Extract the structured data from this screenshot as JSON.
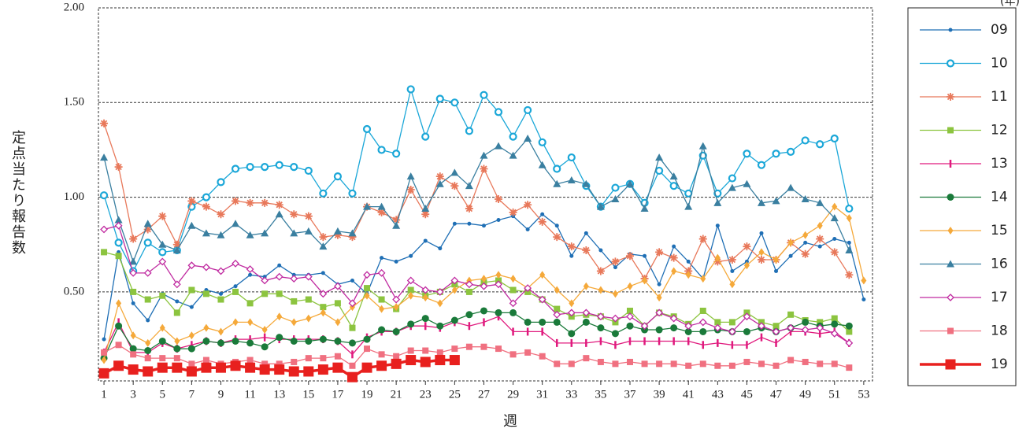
{
  "chart_data": {
    "type": "line",
    "x_label": "週",
    "y_label": "定点当たり報告数",
    "legend_title": "(年)",
    "x": [
      1,
      2,
      3,
      4,
      5,
      6,
      7,
      8,
      9,
      10,
      11,
      12,
      13,
      14,
      15,
      16,
      17,
      18,
      19,
      20,
      21,
      22,
      23,
      24,
      25,
      26,
      27,
      28,
      29,
      30,
      31,
      32,
      33,
      34,
      35,
      36,
      37,
      38,
      39,
      40,
      41,
      42,
      43,
      44,
      45,
      46,
      47,
      48,
      49,
      50,
      51,
      52,
      53
    ],
    "xlim": [
      0.62,
      53.6
    ],
    "xticks": [
      1,
      3,
      5,
      7,
      9,
      11,
      13,
      15,
      17,
      19,
      21,
      23,
      25,
      27,
      29,
      31,
      33,
      35,
      37,
      39,
      41,
      43,
      45,
      47,
      49,
      51,
      53
    ],
    "ylim": [
      0.03,
      2.0
    ],
    "yticks": [
      {
        "value": 0.5,
        "label": "0.50"
      },
      {
        "value": 1,
        "label": "1.00"
      },
      {
        "value": 1.5,
        "label": "1.50"
      },
      {
        "value": 2,
        "label": "2.00"
      }
    ],
    "grid": true,
    "legend": "right",
    "series": [
      {
        "name": "09",
        "color": "#1f6fb5",
        "marker": "dot",
        "values": [
          0.25,
          0.71,
          0.44,
          0.35,
          0.49,
          0.45,
          0.42,
          0.51,
          0.49,
          0.53,
          0.59,
          0.58,
          0.64,
          0.59,
          0.59,
          0.6,
          0.54,
          0.56,
          0.49,
          0.68,
          0.66,
          0.69,
          0.77,
          0.73,
          0.86,
          0.86,
          0.85,
          0.88,
          0.9,
          0.83,
          0.91,
          0.85,
          0.69,
          0.81,
          0.72,
          0.63,
          0.7,
          0.69,
          0.54,
          0.74,
          0.66,
          0.57,
          0.85,
          0.61,
          0.66,
          0.81,
          0.61,
          0.69,
          0.76,
          0.74,
          0.78,
          0.76,
          0.46
        ]
      },
      {
        "name": "10",
        "color": "#1ba7d8",
        "marker": "ring",
        "values": [
          1.01,
          0.76,
          0.61,
          0.76,
          0.71,
          0.72,
          0.95,
          1.0,
          1.08,
          1.15,
          1.16,
          1.16,
          1.17,
          1.16,
          1.14,
          1.02,
          1.11,
          1.02,
          1.36,
          1.25,
          1.23,
          1.57,
          1.32,
          1.52,
          1.5,
          1.35,
          1.54,
          1.45,
          1.32,
          1.46,
          1.29,
          1.15,
          1.21,
          1.06,
          0.95,
          1.05,
          1.07,
          0.97,
          1.14,
          1.06,
          1.02,
          1.22,
          1.02,
          1.1,
          1.23,
          1.17,
          1.23,
          1.24,
          1.3,
          1.28,
          1.31,
          0.94,
          null
        ]
      },
      {
        "name": "11",
        "color": "#e8785a",
        "marker": "star",
        "values": [
          1.39,
          1.16,
          0.78,
          0.83,
          0.9,
          0.75,
          0.98,
          0.95,
          0.91,
          0.98,
          0.97,
          0.97,
          0.96,
          0.91,
          0.9,
          0.79,
          0.8,
          0.79,
          0.95,
          0.92,
          0.88,
          1.04,
          0.91,
          1.11,
          1.06,
          0.94,
          1.15,
          0.99,
          0.92,
          0.96,
          0.87,
          0.79,
          0.74,
          0.72,
          0.61,
          0.66,
          0.69,
          0.57,
          0.71,
          0.68,
          0.61,
          0.78,
          0.66,
          0.67,
          0.74,
          0.67,
          0.67,
          0.76,
          0.7,
          0.78,
          0.71,
          0.59,
          null
        ]
      },
      {
        "name": "12",
        "color": "#8cc43f",
        "marker": "square",
        "values": [
          0.71,
          0.69,
          0.5,
          0.46,
          0.48,
          0.39,
          0.51,
          0.49,
          0.46,
          0.5,
          0.44,
          0.49,
          0.49,
          0.45,
          0.46,
          0.42,
          0.44,
          0.31,
          0.52,
          0.46,
          0.41,
          0.51,
          0.48,
          0.5,
          0.54,
          0.5,
          0.55,
          0.56,
          0.51,
          0.5,
          0.46,
          0.41,
          0.37,
          0.38,
          0.37,
          0.34,
          0.4,
          0.32,
          0.39,
          0.37,
          0.33,
          0.4,
          0.34,
          0.34,
          0.39,
          0.34,
          0.32,
          0.38,
          0.35,
          0.34,
          0.36,
          0.29,
          null
        ]
      },
      {
        "name": "13",
        "color": "#e0197d",
        "marker": "tick",
        "values": [
          0.18,
          0.34,
          0.18,
          0.18,
          0.23,
          0.2,
          0.22,
          0.24,
          0.23,
          0.25,
          0.25,
          0.26,
          0.25,
          0.25,
          0.25,
          0.25,
          0.24,
          0.17,
          0.26,
          0.29,
          0.29,
          0.32,
          0.32,
          0.31,
          0.34,
          0.32,
          0.34,
          0.37,
          0.29,
          0.29,
          0.29,
          0.23,
          0.23,
          0.23,
          0.24,
          0.22,
          0.24,
          0.24,
          0.24,
          0.24,
          0.24,
          0.22,
          0.23,
          0.22,
          0.22,
          0.26,
          0.23,
          0.29,
          0.29,
          0.28,
          0.29,
          0.23,
          null
        ]
      },
      {
        "name": "14",
        "color": "#1a7a3a",
        "marker": "bigdot",
        "values": [
          0.15,
          0.32,
          0.2,
          0.19,
          0.24,
          0.2,
          0.2,
          0.24,
          0.23,
          0.24,
          0.23,
          0.21,
          0.26,
          0.24,
          0.24,
          0.25,
          0.24,
          0.23,
          0.25,
          0.3,
          0.29,
          0.33,
          0.36,
          0.32,
          0.35,
          0.38,
          0.4,
          0.39,
          0.39,
          0.34,
          0.34,
          0.34,
          0.28,
          0.34,
          0.31,
          0.28,
          0.32,
          0.3,
          0.3,
          0.31,
          0.29,
          0.29,
          0.3,
          0.29,
          0.29,
          0.31,
          0.29,
          0.31,
          0.34,
          0.32,
          0.33,
          0.32,
          null
        ]
      },
      {
        "name": "15",
        "color": "#f5a93a",
        "marker": "diamond",
        "values": [
          0.14,
          0.44,
          0.27,
          0.23,
          0.31,
          0.24,
          0.27,
          0.31,
          0.29,
          0.34,
          0.34,
          0.3,
          0.37,
          0.34,
          0.36,
          0.39,
          0.34,
          0.42,
          0.48,
          0.41,
          0.42,
          0.48,
          0.47,
          0.44,
          0.51,
          0.56,
          0.57,
          0.59,
          0.57,
          0.52,
          0.59,
          0.51,
          0.44,
          0.53,
          0.51,
          0.49,
          0.53,
          0.56,
          0.47,
          0.61,
          0.59,
          0.57,
          0.68,
          0.54,
          0.64,
          0.71,
          0.67,
          0.76,
          0.8,
          0.85,
          0.95,
          0.89,
          0.56
        ]
      },
      {
        "name": "16",
        "color": "#3a7fa0",
        "marker": "triangle",
        "values": [
          1.21,
          0.88,
          0.66,
          0.86,
          0.75,
          0.72,
          0.85,
          0.81,
          0.8,
          0.86,
          0.8,
          0.81,
          0.91,
          0.81,
          0.82,
          0.74,
          0.82,
          0.81,
          0.95,
          0.95,
          0.85,
          1.11,
          0.94,
          1.07,
          1.13,
          1.06,
          1.22,
          1.27,
          1.22,
          1.31,
          1.17,
          1.07,
          1.09,
          1.07,
          0.95,
          0.99,
          1.07,
          0.94,
          1.21,
          1.11,
          0.95,
          1.27,
          0.97,
          1.05,
          1.07,
          0.97,
          0.98,
          1.05,
          0.99,
          0.97,
          0.89,
          0.72,
          null
        ]
      },
      {
        "name": "17",
        "color": "#c02aa0",
        "marker": "opendiamond",
        "values": [
          0.83,
          0.85,
          0.6,
          0.6,
          0.66,
          0.54,
          0.64,
          0.63,
          0.61,
          0.65,
          0.62,
          0.56,
          0.58,
          0.57,
          0.58,
          0.49,
          0.53,
          0.44,
          0.59,
          0.6,
          0.46,
          0.56,
          0.51,
          0.5,
          0.56,
          0.54,
          0.53,
          0.54,
          0.44,
          0.52,
          0.46,
          0.38,
          0.39,
          0.39,
          0.37,
          0.36,
          0.37,
          0.32,
          0.39,
          0.36,
          0.32,
          0.34,
          0.31,
          0.29,
          0.37,
          0.32,
          0.29,
          0.31,
          0.3,
          0.31,
          0.28,
          0.23,
          null
        ]
      },
      {
        "name": "18",
        "color": "#f07080",
        "marker": "square",
        "values": [
          0.18,
          0.22,
          0.17,
          0.15,
          0.15,
          0.15,
          0.12,
          0.14,
          0.12,
          0.13,
          0.14,
          0.12,
          0.12,
          0.13,
          0.15,
          0.15,
          0.16,
          0.11,
          0.2,
          0.17,
          0.16,
          0.19,
          0.19,
          0.18,
          0.2,
          0.21,
          0.21,
          0.2,
          0.17,
          0.18,
          0.16,
          0.12,
          0.12,
          0.15,
          0.13,
          0.12,
          0.13,
          0.12,
          0.12,
          0.12,
          0.11,
          0.12,
          0.11,
          0.11,
          0.13,
          0.12,
          0.11,
          0.14,
          0.13,
          0.12,
          0.12,
          0.1,
          null
        ]
      },
      {
        "name": "19",
        "color": "#e8201e",
        "marker": "bigsquare",
        "values": [
          0.07,
          0.11,
          0.09,
          0.08,
          0.1,
          0.1,
          0.08,
          0.1,
          0.1,
          0.11,
          0.1,
          0.09,
          0.09,
          0.08,
          0.08,
          0.09,
          0.1,
          0.05,
          0.1,
          0.11,
          0.12,
          0.14,
          0.13,
          0.14,
          0.14,
          null,
          null,
          null,
          null,
          null,
          null,
          null,
          null,
          null,
          null,
          null,
          null,
          null,
          null,
          null,
          null,
          null,
          null,
          null,
          null,
          null,
          null,
          null,
          null,
          null,
          null,
          null,
          null
        ]
      }
    ]
  }
}
